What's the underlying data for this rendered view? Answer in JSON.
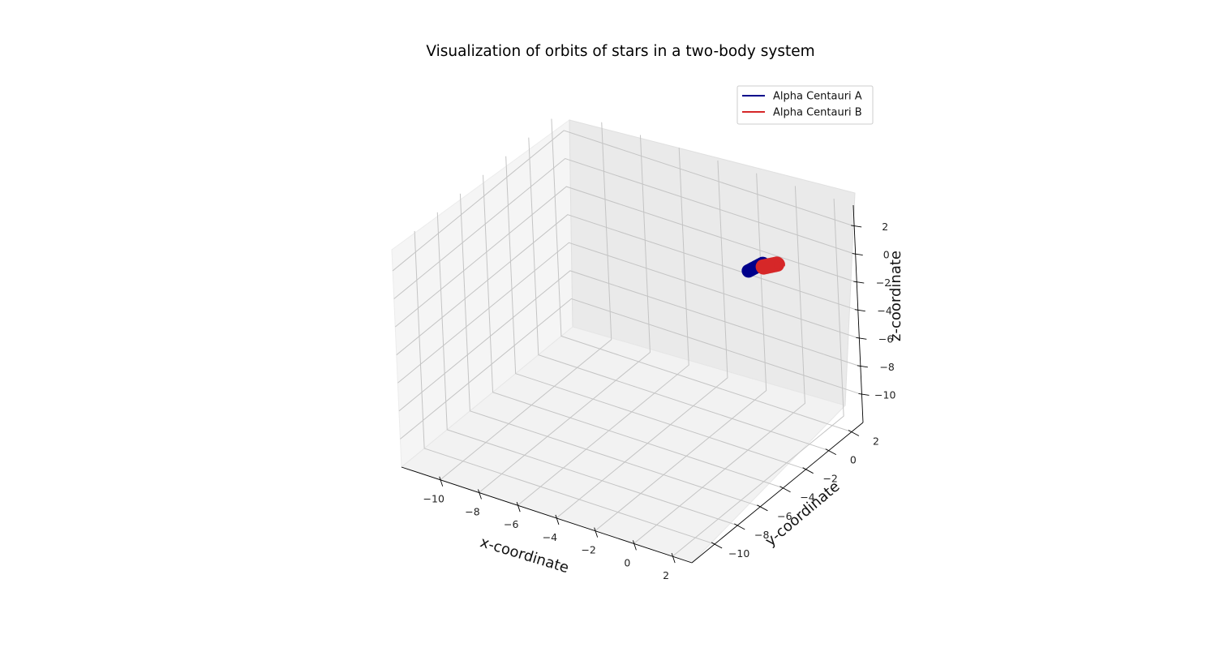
{
  "chart_data": {
    "type": "line3d",
    "title": "Visualization of orbits of stars in a two-body system",
    "xlabel": "x-coordinate",
    "ylabel": "y-coordinate",
    "zlabel": "z-coordinate",
    "xlim": [
      -12,
      3
    ],
    "ylim": [
      -12,
      3
    ],
    "zlim": [
      -12,
      3.5
    ],
    "xticks": [
      -10,
      -8,
      -6,
      -4,
      -2,
      0,
      2
    ],
    "yticks": [
      -10,
      -8,
      -6,
      -4,
      -2,
      0,
      2
    ],
    "zticks": [
      -10,
      -8,
      -6,
      -4,
      -2,
      0,
      2
    ],
    "grid": true,
    "legend_position": "top-right",
    "series": [
      {
        "name": "Alpha Centauri A",
        "color": "#00008b",
        "helix": {
          "start": [
            0,
            0,
            0
          ],
          "end": [
            -0.2,
            -1.0,
            0.0
          ],
          "radius": 0.3,
          "turns": 18
        },
        "endpoint": [
          0,
          0,
          0
        ]
      },
      {
        "name": "Alpha Centauri B",
        "color": "#d62728",
        "helix": {
          "start": [
            0.5,
            0.4,
            -0.1
          ],
          "end": [
            0.1,
            -0.2,
            -0.1
          ],
          "radius": 0.35,
          "turns": 18
        },
        "endpoint": [
          0.5,
          0.4,
          -0.2
        ]
      }
    ]
  }
}
